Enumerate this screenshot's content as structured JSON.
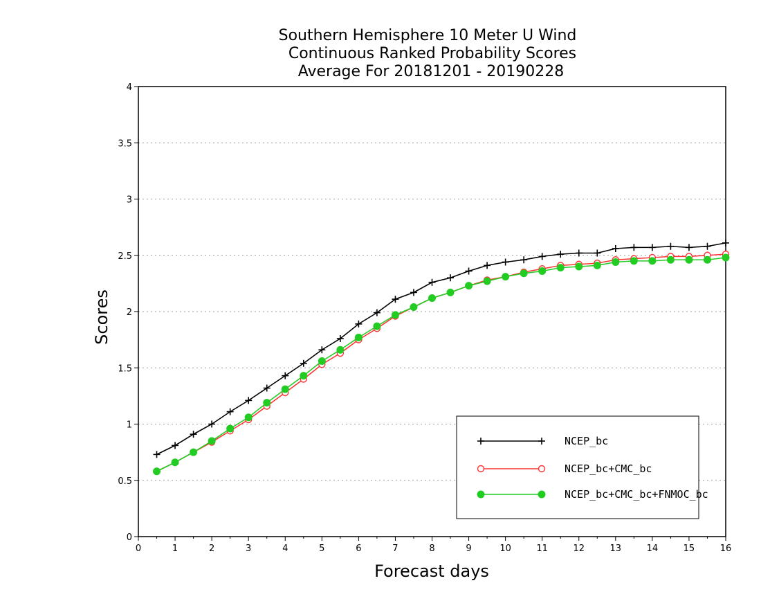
{
  "chart_data": {
    "type": "line",
    "title": [
      "Southern Hemisphere 10 Meter U Wind",
      "Continuous Ranked Probability Scores",
      "Average For 20181201 - 20190228"
    ],
    "xlabel": "Forecast days",
    "ylabel": "Scores",
    "xlim": [
      0,
      16
    ],
    "ylim": [
      0,
      4
    ],
    "xticks": [
      0,
      1,
      2,
      3,
      4,
      5,
      6,
      7,
      8,
      9,
      10,
      11,
      12,
      13,
      14,
      15,
      16
    ],
    "yticks": [
      0,
      0.5,
      1,
      1.5,
      2,
      2.5,
      3,
      3.5,
      4
    ],
    "ytick_labels": [
      "0",
      "0.5",
      "1",
      "1.5",
      "2",
      "2.5",
      "3",
      "3.5",
      "4"
    ],
    "grid": "horizontal dotted",
    "legend_position": "bottom-right",
    "x": [
      0.5,
      1,
      1.5,
      2,
      2.5,
      3,
      3.5,
      4,
      4.5,
      5,
      5.5,
      6,
      6.5,
      7,
      7.5,
      8,
      8.5,
      9,
      9.5,
      10,
      10.5,
      11,
      11.5,
      12,
      12.5,
      13,
      13.5,
      14,
      14.5,
      15,
      15.5,
      16
    ],
    "series": [
      {
        "name": "NCEP_bc",
        "color": "#000000",
        "marker": "plus",
        "values": [
          0.73,
          0.81,
          0.91,
          1.0,
          1.11,
          1.21,
          1.32,
          1.43,
          1.54,
          1.66,
          1.76,
          1.89,
          1.99,
          2.11,
          2.17,
          2.26,
          2.3,
          2.36,
          2.41,
          2.44,
          2.46,
          2.49,
          2.51,
          2.52,
          2.52,
          2.56,
          2.57,
          2.57,
          2.58,
          2.57,
          2.58,
          2.61
        ]
      },
      {
        "name": "NCEP_bc+CMC_bc",
        "color": "#ff3333",
        "marker": "open-circle",
        "values": [
          0.58,
          0.66,
          0.75,
          0.84,
          0.94,
          1.04,
          1.16,
          1.28,
          1.4,
          1.53,
          1.63,
          1.75,
          1.85,
          1.96,
          2.04,
          2.12,
          2.17,
          2.23,
          2.28,
          2.31,
          2.35,
          2.38,
          2.41,
          2.42,
          2.43,
          2.46,
          2.47,
          2.48,
          2.49,
          2.49,
          2.5,
          2.51
        ]
      },
      {
        "name": "NCEP_bc+CMC_bc+FNMOC_bc",
        "color": "#22cc22",
        "marker": "filled-circle",
        "values": [
          0.58,
          0.66,
          0.75,
          0.85,
          0.96,
          1.06,
          1.19,
          1.31,
          1.43,
          1.56,
          1.66,
          1.77,
          1.87,
          1.97,
          2.04,
          2.12,
          2.17,
          2.23,
          2.27,
          2.31,
          2.34,
          2.36,
          2.39,
          2.4,
          2.41,
          2.44,
          2.45,
          2.45,
          2.46,
          2.46,
          2.46,
          2.48
        ]
      }
    ]
  }
}
